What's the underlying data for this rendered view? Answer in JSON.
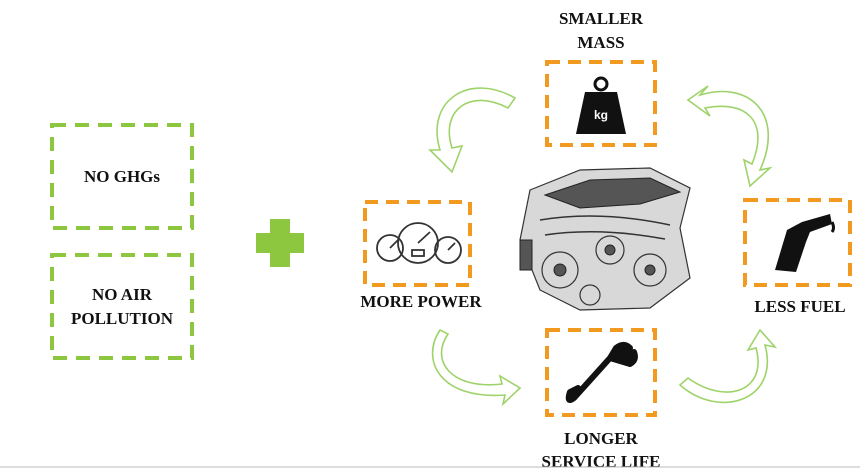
{
  "left_boxes": [
    {
      "label_lines": [
        "NO GHGs"
      ]
    },
    {
      "label_lines": [
        "NO AIR",
        "POLLUTION"
      ]
    }
  ],
  "cycle": [
    {
      "label_lines": [
        "SMALLER",
        "MASS"
      ],
      "icon_text": "kg"
    },
    {
      "label_lines": [
        "MORE POWER"
      ]
    },
    {
      "label_lines": [
        "LESS FUEL"
      ]
    },
    {
      "label_lines": [
        "LONGER",
        "SERVICE LIFE"
      ]
    }
  ]
}
